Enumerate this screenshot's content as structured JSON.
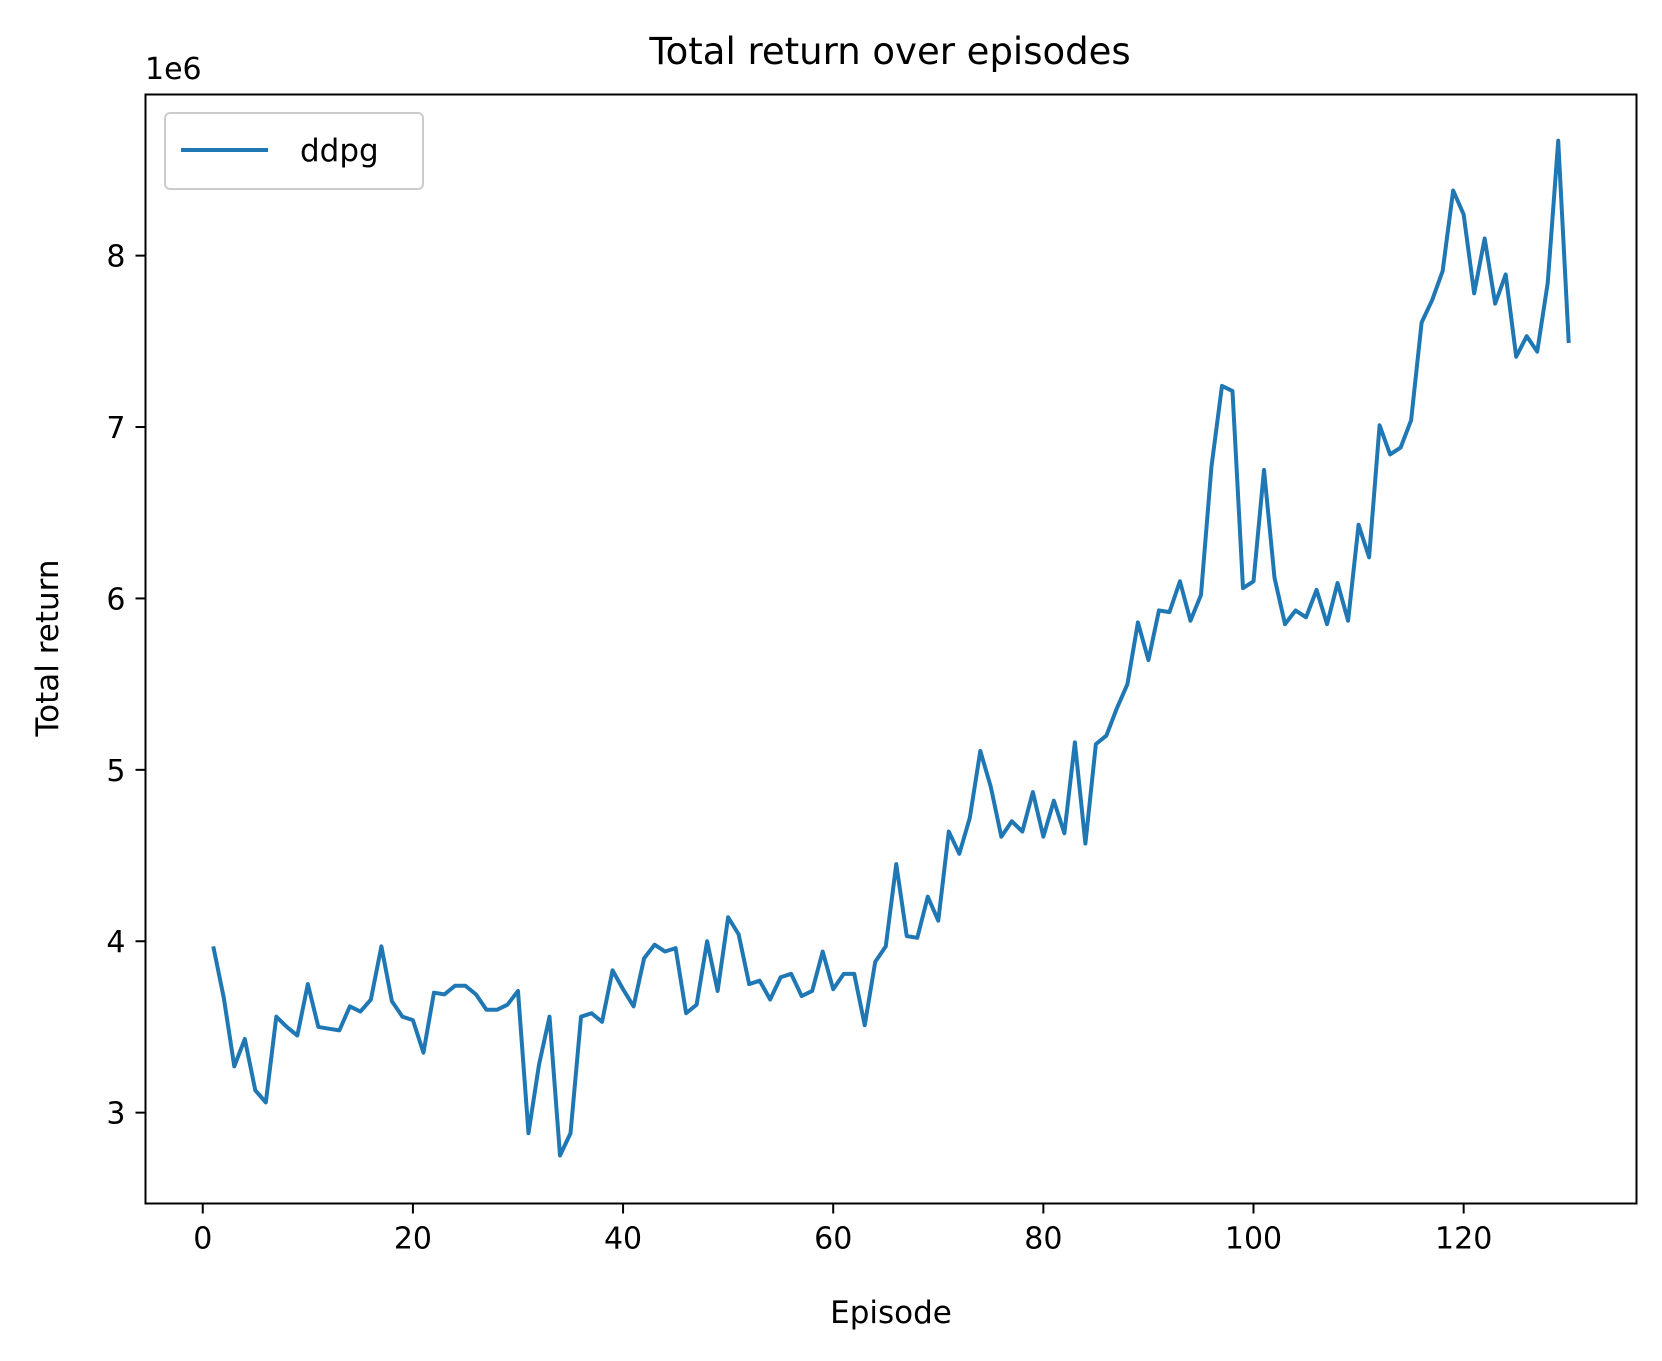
{
  "chart_data": {
    "type": "line",
    "title": "Total return over episodes",
    "xlabel": "Episode",
    "ylabel": "Total return",
    "y_offset_label": "1e6",
    "y_scale_factor": 1000000,
    "xlim": [
      -5.45,
      136.45
    ],
    "ylim": [
      2.47,
      8.94
    ],
    "x_ticks": [
      0,
      20,
      40,
      60,
      80,
      100,
      120
    ],
    "y_ticks": [
      3,
      4,
      5,
      6,
      7,
      8
    ],
    "grid": false,
    "legend_position": "upper-left",
    "colors": {
      "series": "#1f77b4",
      "axes": "#000000",
      "legend_border": "#cccccc"
    },
    "series": [
      {
        "name": "ddpg",
        "x": [
          1,
          2,
          3,
          4,
          5,
          6,
          7,
          8,
          9,
          10,
          11,
          12,
          13,
          14,
          15,
          16,
          17,
          18,
          19,
          20,
          21,
          22,
          23,
          24,
          25,
          26,
          27,
          28,
          29,
          30,
          31,
          32,
          33,
          34,
          35,
          36,
          37,
          38,
          39,
          40,
          41,
          42,
          43,
          44,
          45,
          46,
          47,
          48,
          49,
          50,
          51,
          52,
          53,
          54,
          55,
          56,
          57,
          58,
          59,
          60,
          61,
          62,
          63,
          64,
          65,
          66,
          67,
          68,
          69,
          70,
          71,
          72,
          73,
          74,
          75,
          76,
          77,
          78,
          79,
          80,
          81,
          82,
          83,
          84,
          85,
          86,
          87,
          88,
          89,
          90,
          91,
          92,
          93,
          94,
          95,
          96,
          97,
          98,
          99,
          100,
          101,
          102,
          103,
          104,
          105,
          106,
          107,
          108,
          109,
          110,
          111,
          112,
          113,
          114,
          115,
          116,
          117,
          118,
          119,
          120,
          121,
          122,
          123,
          124,
          125,
          126,
          127,
          128,
          129,
          130
        ],
        "y": [
          3.97,
          3.67,
          3.27,
          3.43,
          3.13,
          3.06,
          3.56,
          3.5,
          3.45,
          3.75,
          3.5,
          3.49,
          3.48,
          3.62,
          3.59,
          3.66,
          3.97,
          3.65,
          3.56,
          3.54,
          3.35,
          3.7,
          3.69,
          3.74,
          3.74,
          3.69,
          3.6,
          3.6,
          3.63,
          3.71,
          2.88,
          3.28,
          3.56,
          2.75,
          2.88,
          3.56,
          3.58,
          3.53,
          3.83,
          3.72,
          3.62,
          3.9,
          3.98,
          3.94,
          3.96,
          3.58,
          3.63,
          4.0,
          3.71,
          4.14,
          4.04,
          3.75,
          3.77,
          3.66,
          3.79,
          3.81,
          3.68,
          3.71,
          3.94,
          3.72,
          3.81,
          3.81,
          3.51,
          3.88,
          3.97,
          4.45,
          4.03,
          4.02,
          4.26,
          4.12,
          4.64,
          4.51,
          4.72,
          5.11,
          4.9,
          4.61,
          4.7,
          4.64,
          4.87,
          4.61,
          4.82,
          4.63,
          5.16,
          4.57,
          5.15,
          5.2,
          5.36,
          5.5,
          5.86,
          5.64,
          5.93,
          5.92,
          6.1,
          5.87,
          6.02,
          6.77,
          7.24,
          7.21,
          6.06,
          6.1,
          6.75,
          6.12,
          5.85,
          5.93,
          5.89,
          6.05,
          5.85,
          6.09,
          5.87,
          6.43,
          6.24,
          7.01,
          6.84,
          6.88,
          7.04,
          7.61,
          7.74,
          7.91,
          8.38,
          8.24,
          7.78,
          8.1,
          7.72,
          7.89,
          7.41,
          7.53,
          7.44,
          7.84,
          8.67,
          7.49
        ]
      }
    ]
  }
}
